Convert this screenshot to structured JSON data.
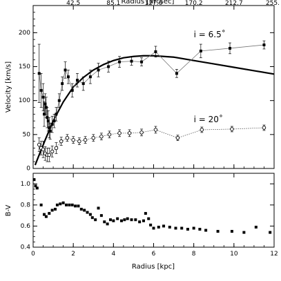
{
  "chart_data": [
    {
      "type": "scatter",
      "panel": "velocity",
      "ylabel": "Velocity [km/s]",
      "xlabel": "",
      "top_axis_label": "Radius [arcsec]",
      "top_ticks": [
        "42.5",
        "85.1",
        "127.6",
        "170.2",
        "212.7",
        "255."
      ],
      "top_tick_kpc": [
        0,
        2,
        4,
        6,
        8,
        10,
        12
      ],
      "xlim": [
        0,
        12
      ],
      "ylim": [
        0,
        240
      ],
      "yticks": [
        0,
        50,
        100,
        150,
        200
      ],
      "xticks": [
        0,
        2,
        4,
        6,
        8,
        10,
        12
      ],
      "annotations": [
        {
          "text": "i = 6.5˚",
          "x": 8.0,
          "y": 193
        },
        {
          "text": "i = 20˚",
          "x": 8.0,
          "y": 68
        }
      ],
      "series": [
        {
          "marker": "filled-square",
          "points": [
            [
              0.3,
              140,
              43
            ],
            [
              0.4,
              115,
              25
            ],
            [
              0.5,
              105,
              20
            ],
            [
              0.55,
              80,
              18
            ],
            [
              0.6,
              95,
              15
            ],
            [
              0.65,
              90,
              15
            ],
            [
              0.7,
              75,
              15
            ],
            [
              0.75,
              70,
              15
            ],
            [
              0.8,
              60,
              15
            ],
            [
              0.85,
              55,
              12
            ],
            [
              0.95,
              65,
              12
            ],
            [
              1.05,
              70,
              10
            ],
            [
              1.15,
              80,
              10
            ],
            [
              1.3,
              100,
              10
            ],
            [
              1.45,
              125,
              10
            ],
            [
              1.6,
              145,
              12
            ],
            [
              1.75,
              135,
              10
            ],
            [
              1.95,
              115,
              10
            ],
            [
              2.2,
              130,
              10
            ],
            [
              2.5,
              125,
              10
            ],
            [
              2.85,
              135,
              10
            ],
            [
              3.25,
              145,
              10
            ],
            [
              3.75,
              150,
              8
            ],
            [
              4.3,
              157,
              8
            ],
            [
              4.9,
              158,
              6
            ],
            [
              5.4,
              157,
              6
            ],
            [
              6.1,
              172,
              8
            ],
            [
              7.15,
              140,
              6
            ],
            [
              8.35,
              173,
              10
            ],
            [
              9.8,
              177,
              8
            ],
            [
              11.5,
              182,
              6
            ]
          ]
        },
        {
          "marker": "open-circle",
          "points": [
            [
              0.3,
              35,
              10
            ],
            [
              0.4,
              30,
              10
            ],
            [
              0.5,
              28,
              12
            ],
            [
              0.6,
              22,
              10
            ],
            [
              0.7,
              20,
              10
            ],
            [
              0.8,
              20,
              10
            ],
            [
              0.95,
              25,
              8
            ],
            [
              1.15,
              30,
              8
            ],
            [
              1.4,
              40,
              6
            ],
            [
              1.7,
              45,
              5
            ],
            [
              2.0,
              42,
              5
            ],
            [
              2.3,
              40,
              5
            ],
            [
              2.6,
              42,
              5
            ],
            [
              3.0,
              45,
              5
            ],
            [
              3.4,
              47,
              5
            ],
            [
              3.8,
              50,
              5
            ],
            [
              4.3,
              52,
              5
            ],
            [
              4.8,
              52,
              5
            ],
            [
              5.4,
              53,
              5
            ],
            [
              6.1,
              57,
              5
            ],
            [
              7.2,
              45,
              4
            ],
            [
              8.4,
              57,
              4
            ],
            [
              9.9,
              58,
              4
            ],
            [
              11.5,
              60,
              4
            ]
          ]
        }
      ],
      "model_curve": {
        "x": [
          0.1,
          0.3,
          0.6,
          1.0,
          1.5,
          2.0,
          2.5,
          3.0,
          3.5,
          4.0,
          4.5,
          5.0,
          5.5,
          6.0,
          7.0,
          8.0,
          9.0,
          10.0,
          11.0,
          12.0
        ],
        "y": [
          5,
          20,
          42,
          70,
          98,
          120,
          134,
          145,
          153,
          159,
          163,
          165,
          166,
          166,
          164,
          159,
          154,
          149,
          144,
          139
        ]
      }
    },
    {
      "type": "scatter",
      "panel": "color",
      "ylabel": "B-V",
      "xlabel": "Radius [kpc]",
      "xlim": [
        0,
        12
      ],
      "ylim": [
        0.4,
        1.1
      ],
      "yticks": [
        0.4,
        0.6,
        0.8,
        1.0
      ],
      "ytick_labels": [
        "0.4",
        "0.6",
        "0.8",
        "1.0"
      ],
      "xticks": [
        0,
        2,
        4,
        6,
        8,
        10,
        12
      ],
      "points": [
        [
          0.05,
          1.04
        ],
        [
          0.12,
          0.98
        ],
        [
          0.2,
          0.96
        ],
        [
          0.4,
          0.8
        ],
        [
          0.55,
          0.71
        ],
        [
          0.65,
          0.69
        ],
        [
          0.8,
          0.72
        ],
        [
          0.95,
          0.75
        ],
        [
          1.1,
          0.76
        ],
        [
          1.2,
          0.8
        ],
        [
          1.35,
          0.81
        ],
        [
          1.5,
          0.82
        ],
        [
          1.65,
          0.8
        ],
        [
          1.8,
          0.8
        ],
        [
          1.95,
          0.8
        ],
        [
          2.1,
          0.79
        ],
        [
          2.25,
          0.79
        ],
        [
          2.4,
          0.76
        ],
        [
          2.55,
          0.75
        ],
        [
          2.7,
          0.73
        ],
        [
          2.85,
          0.71
        ],
        [
          2.95,
          0.68
        ],
        [
          3.1,
          0.66
        ],
        [
          3.25,
          0.77
        ],
        [
          3.4,
          0.7
        ],
        [
          3.55,
          0.64
        ],
        [
          3.7,
          0.62
        ],
        [
          3.85,
          0.66
        ],
        [
          4.0,
          0.65
        ],
        [
          4.2,
          0.67
        ],
        [
          4.4,
          0.65
        ],
        [
          4.55,
          0.66
        ],
        [
          4.7,
          0.67
        ],
        [
          4.9,
          0.66
        ],
        [
          5.1,
          0.66
        ],
        [
          5.3,
          0.64
        ],
        [
          5.5,
          0.65
        ],
        [
          5.6,
          0.72
        ],
        [
          5.75,
          0.67
        ],
        [
          5.85,
          0.61
        ],
        [
          6.0,
          0.58
        ],
        [
          6.25,
          0.59
        ],
        [
          6.5,
          0.6
        ],
        [
          6.8,
          0.59
        ],
        [
          7.1,
          0.58
        ],
        [
          7.4,
          0.58
        ],
        [
          7.7,
          0.57
        ],
        [
          8.0,
          0.58
        ],
        [
          8.3,
          0.57
        ],
        [
          8.6,
          0.56
        ],
        [
          9.2,
          0.55
        ],
        [
          9.9,
          0.55
        ],
        [
          10.5,
          0.54
        ],
        [
          11.1,
          0.59
        ],
        [
          11.8,
          0.54
        ]
      ]
    }
  ]
}
